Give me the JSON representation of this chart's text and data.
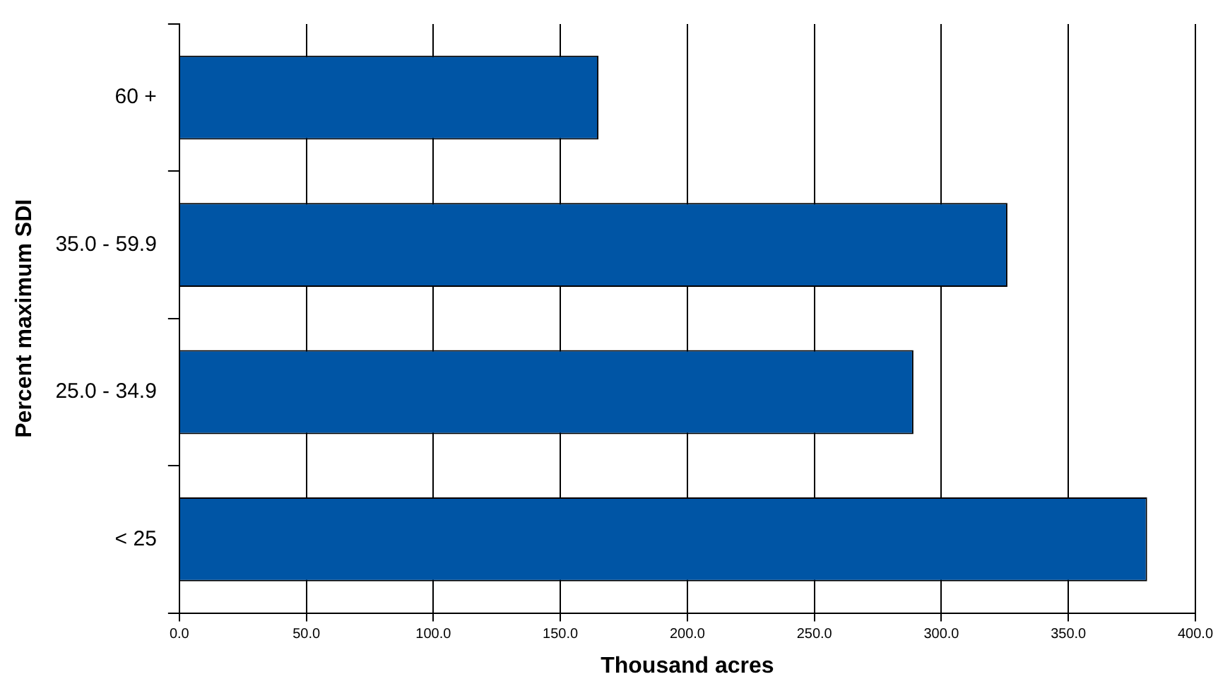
{
  "chart_data": {
    "type": "bar",
    "orientation": "horizontal",
    "xlabel": "Thousand acres",
    "ylabel": "Percent maximum SDI",
    "categories": [
      "60 +",
      "35.0 - 59.9",
      "25.0 - 34.9",
      "< 25"
    ],
    "values": [
      165,
      326,
      289,
      381
    ],
    "color": "#0055a5",
    "xlim": [
      0,
      400
    ],
    "xticks": [
      {
        "value": 0,
        "label": "0.0"
      },
      {
        "value": 50,
        "label": "50.0"
      },
      {
        "value": 100,
        "label": "100.0"
      },
      {
        "value": 150,
        "label": "150.0"
      },
      {
        "value": 200,
        "label": "200.0"
      },
      {
        "value": 250,
        "label": "250.0"
      },
      {
        "value": 300,
        "label": "300.0"
      },
      {
        "value": 350,
        "label": "350.0"
      },
      {
        "value": 400,
        "label": "400.0"
      }
    ],
    "grid": "x",
    "legend": false
  }
}
